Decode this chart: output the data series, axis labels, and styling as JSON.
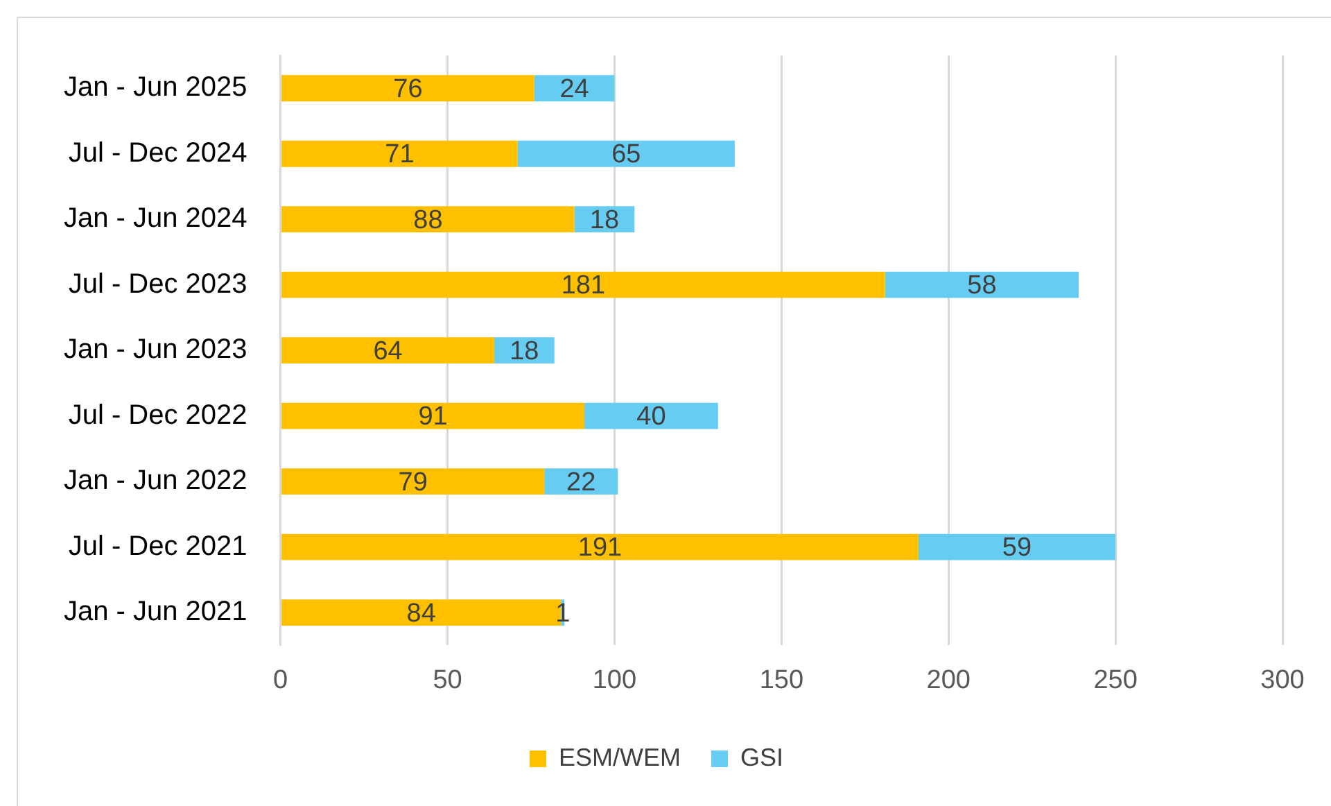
{
  "chart_data": {
    "type": "bar",
    "orientation": "horizontal",
    "stacked": true,
    "categories": [
      "Jan - Jun 2025",
      "Jul - Dec 2024",
      "Jan - Jun 2024",
      "Jul - Dec 2023",
      "Jan - Jun 2023",
      "Jul - Dec 2022",
      "Jan - Jun 2022",
      "Jul - Dec 2021",
      "Jan - Jun 2021"
    ],
    "series": [
      {
        "name": "ESM/WEM",
        "color": "#ffc000",
        "values": [
          76,
          71,
          88,
          181,
          64,
          91,
          79,
          191,
          84
        ]
      },
      {
        "name": "GSI",
        "color": "#66ccf2",
        "values": [
          24,
          65,
          18,
          58,
          18,
          40,
          22,
          59,
          1
        ]
      }
    ],
    "xlim": [
      0,
      300
    ],
    "xticks": [
      0,
      50,
      100,
      150,
      200,
      250,
      300
    ],
    "grid": "x",
    "legend": "bottom",
    "data_labels": true
  }
}
